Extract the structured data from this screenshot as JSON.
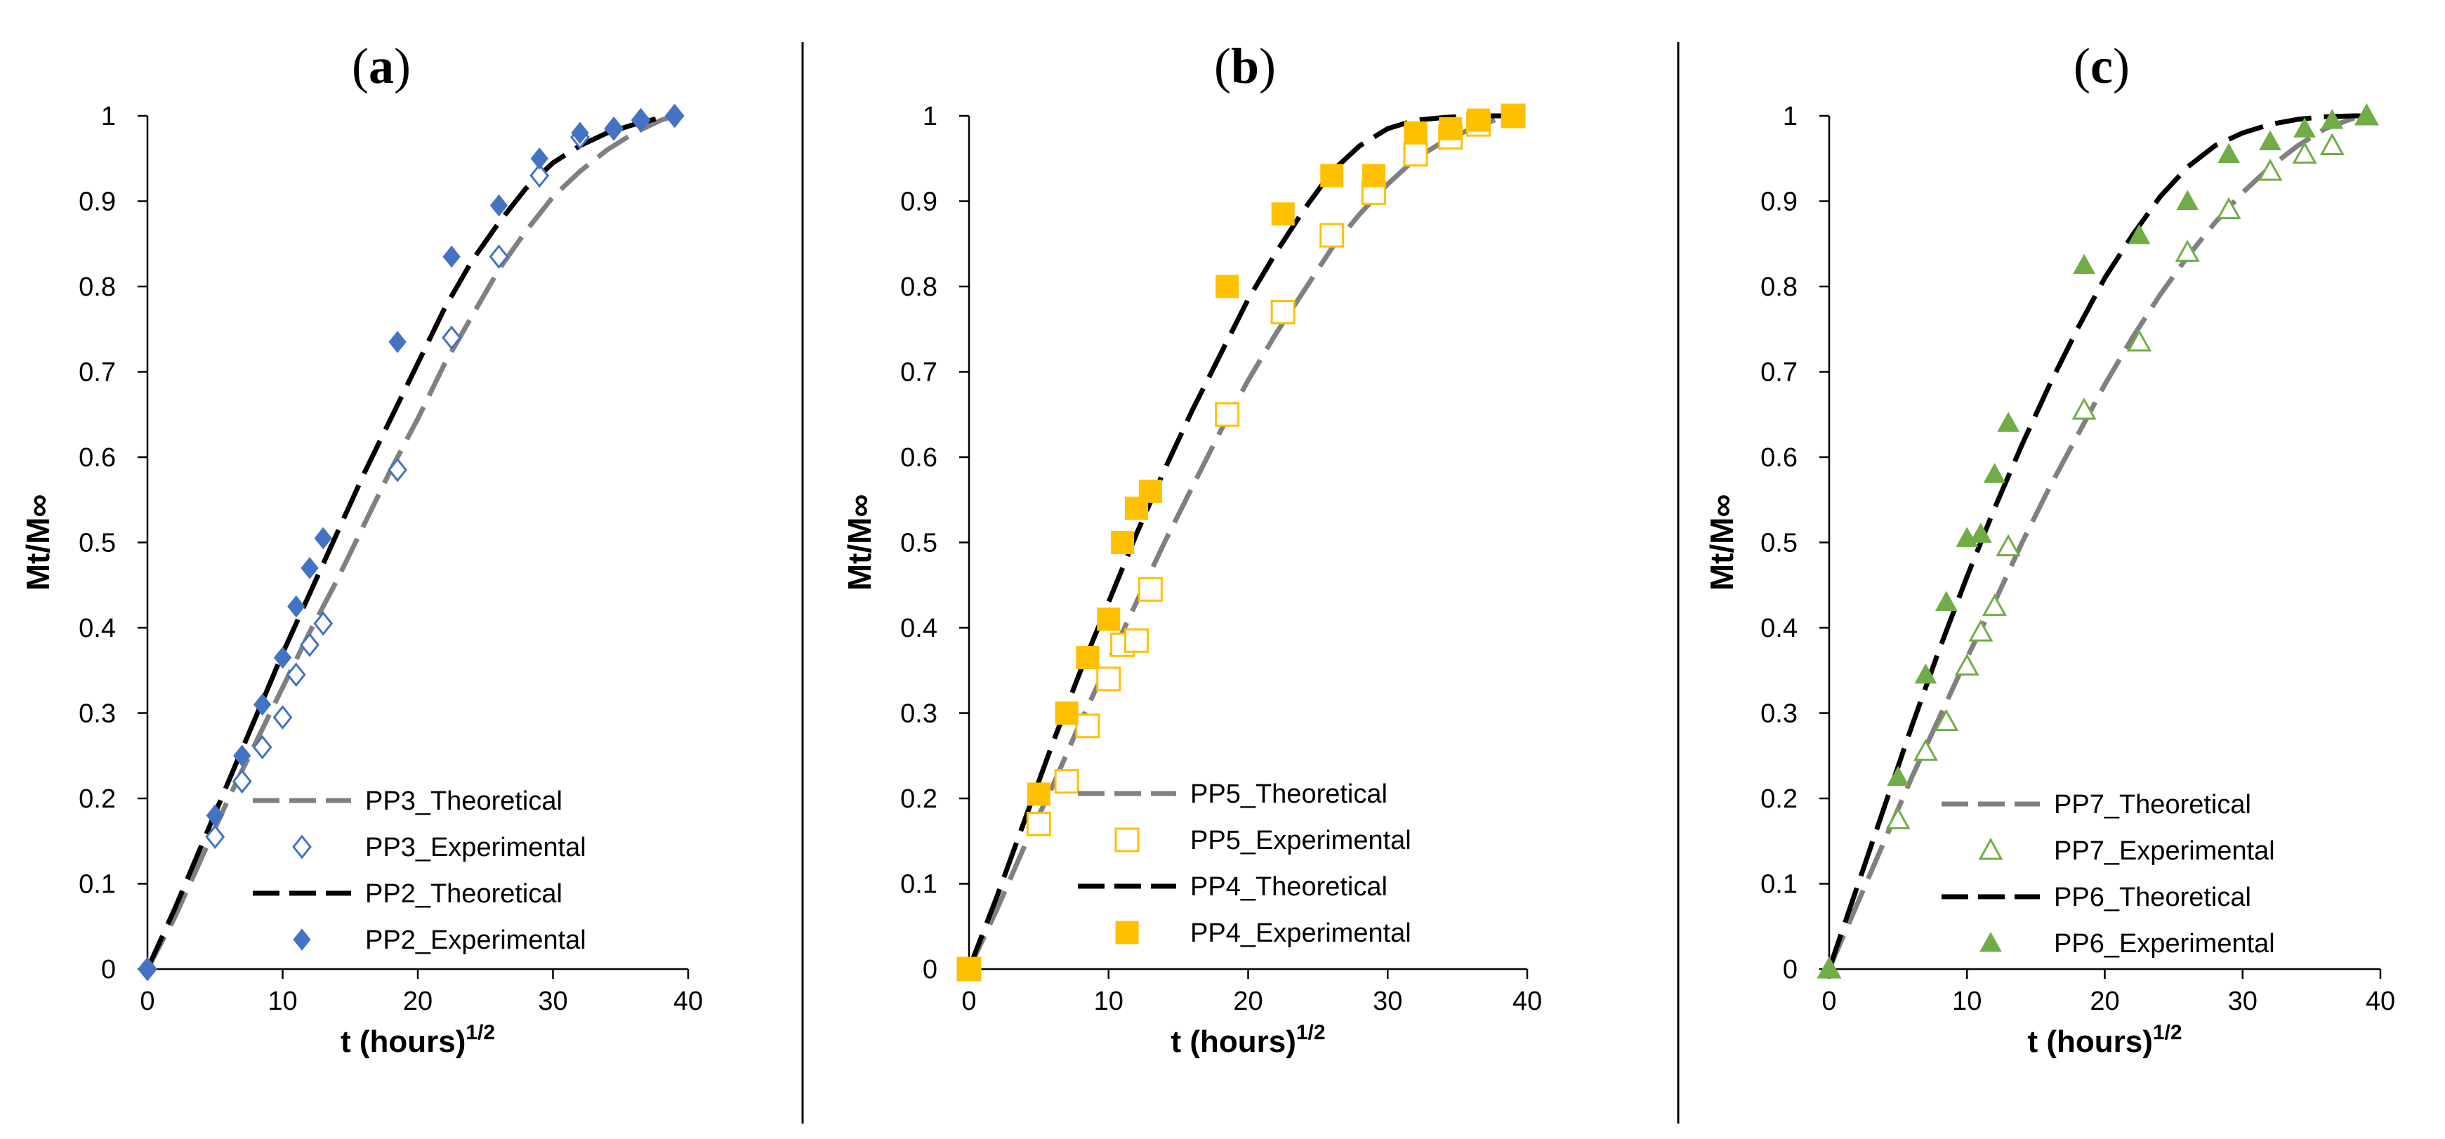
{
  "chart_data": [
    {
      "type": "scatter",
      "panel_label": "a",
      "title_open": "(",
      "title_close": ")",
      "xlabel": "t (hours)",
      "xlabel_exponent": "1/2",
      "ylabel": "Mt/M∞",
      "xlim": [
        0,
        40
      ],
      "ylim": [
        0,
        1
      ],
      "xticks": [
        "0",
        "10",
        "20",
        "30",
        "40"
      ],
      "yticks": [
        "0",
        "0.1",
        "0.2",
        "0.3",
        "0.4",
        "0.5",
        "0.6",
        "0.7",
        "0.8",
        "0.9",
        "1"
      ],
      "series": [
        {
          "name": "PP3_Theoretical",
          "kind": "line",
          "color": "#808080",
          "x": [
            0,
            2,
            4,
            6,
            8,
            10,
            12,
            14,
            16,
            18,
            20,
            22,
            24,
            26,
            28,
            30,
            32,
            34,
            36,
            38,
            39
          ],
          "y": [
            0,
            0.06,
            0.13,
            0.2,
            0.265,
            0.33,
            0.395,
            0.455,
            0.52,
            0.585,
            0.645,
            0.71,
            0.765,
            0.82,
            0.865,
            0.905,
            0.935,
            0.96,
            0.98,
            0.995,
            1.0
          ]
        },
        {
          "name": "PP3_Experimental",
          "kind": "marker",
          "marker": "diamond-open",
          "color": "#4472C4",
          "x": [
            0,
            5,
            7,
            8.5,
            10,
            11,
            12,
            13,
            18.5,
            22.5,
            26,
            29,
            32,
            34.5,
            36.5,
            39
          ],
          "y": [
            0,
            0.155,
            0.22,
            0.26,
            0.295,
            0.345,
            0.38,
            0.405,
            0.585,
            0.74,
            0.835,
            0.93,
            0.975,
            0.985,
            0.995,
            1.0
          ]
        },
        {
          "name": "PP2_Theoretical",
          "kind": "line",
          "color": "#000000",
          "x": [
            0,
            2,
            4,
            6,
            8,
            10,
            12,
            14,
            16,
            18,
            20,
            22,
            24,
            26,
            28,
            30,
            32,
            34,
            36,
            38,
            39
          ],
          "y": [
            0,
            0.07,
            0.145,
            0.22,
            0.295,
            0.37,
            0.44,
            0.51,
            0.58,
            0.645,
            0.71,
            0.775,
            0.83,
            0.875,
            0.915,
            0.945,
            0.965,
            0.98,
            0.99,
            0.998,
            1.0
          ]
        },
        {
          "name": "PP2_Experimental",
          "kind": "marker",
          "marker": "diamond",
          "color": "#4472C4",
          "x": [
            0,
            5,
            7,
            8.5,
            10,
            11,
            12,
            13,
            18.5,
            22.5,
            26,
            29,
            32,
            34.5,
            36.5,
            39
          ],
          "y": [
            0,
            0.18,
            0.25,
            0.31,
            0.365,
            0.425,
            0.47,
            0.505,
            0.735,
            0.835,
            0.895,
            0.95,
            0.98,
            0.985,
            0.995,
            1.0
          ]
        }
      ]
    },
    {
      "type": "scatter",
      "panel_label": "b",
      "title_open": "(",
      "title_close": ")",
      "xlabel": "t (hours)",
      "xlabel_exponent": "1/2",
      "ylabel": "Mt/M∞",
      "xlim": [
        0,
        40
      ],
      "ylim": [
        0,
        1
      ],
      "xticks": [
        "0",
        "10",
        "20",
        "30",
        "40"
      ],
      "yticks": [
        "0",
        "0.1",
        "0.2",
        "0.3",
        "0.4",
        "0.5",
        "0.6",
        "0.7",
        "0.8",
        "0.9",
        "1"
      ],
      "series": [
        {
          "name": "PP5_Theoretical",
          "kind": "line",
          "color": "#808080",
          "x": [
            0,
            2,
            4,
            6,
            8,
            10,
            12,
            14,
            16,
            18,
            20,
            22,
            24,
            26,
            28,
            30,
            32,
            34,
            36,
            38,
            39
          ],
          "y": [
            0,
            0.07,
            0.145,
            0.215,
            0.29,
            0.36,
            0.43,
            0.5,
            0.565,
            0.63,
            0.69,
            0.745,
            0.795,
            0.845,
            0.885,
            0.92,
            0.95,
            0.97,
            0.985,
            0.997,
            1.0
          ]
        },
        {
          "name": "PP5_Experimental",
          "kind": "marker",
          "marker": "square-open",
          "color": "#FFC000",
          "x": [
            0,
            5,
            7,
            8.5,
            10,
            11,
            12,
            13,
            18.5,
            22.5,
            26,
            29,
            32,
            34.5,
            36.5,
            39
          ],
          "y": [
            0,
            0.17,
            0.22,
            0.285,
            0.34,
            0.38,
            0.385,
            0.445,
            0.65,
            0.77,
            0.86,
            0.91,
            0.955,
            0.975,
            0.99,
            1.0
          ]
        },
        {
          "name": "PP4_Theoretical",
          "kind": "line",
          "color": "#000000",
          "x": [
            0,
            2,
            4,
            6,
            8,
            10,
            12,
            14,
            16,
            18,
            20,
            22,
            24,
            26,
            28,
            30,
            32,
            34,
            36,
            38,
            39
          ],
          "y": [
            0,
            0.085,
            0.175,
            0.265,
            0.35,
            0.43,
            0.51,
            0.585,
            0.655,
            0.72,
            0.785,
            0.84,
            0.89,
            0.935,
            0.965,
            0.985,
            0.995,
            0.998,
            1.0,
            1.0,
            1.0
          ]
        },
        {
          "name": "PP4_Experimental",
          "kind": "marker",
          "marker": "square",
          "color": "#FFC000",
          "x": [
            0,
            5,
            7,
            8.5,
            10,
            11,
            12,
            13,
            18.5,
            22.5,
            26,
            29,
            32,
            34.5,
            36.5,
            39
          ],
          "y": [
            0,
            0.205,
            0.3,
            0.365,
            0.41,
            0.5,
            0.54,
            0.56,
            0.8,
            0.885,
            0.93,
            0.93,
            0.98,
            0.985,
            0.995,
            1.0
          ]
        }
      ]
    },
    {
      "type": "scatter",
      "panel_label": "c",
      "title_open": "(",
      "title_close": ")",
      "xlabel": "t (hours)",
      "xlabel_exponent": "1/2",
      "ylabel": "Mt/M∞",
      "xlim": [
        0,
        40
      ],
      "ylim": [
        0,
        1
      ],
      "xticks": [
        "0",
        "10",
        "20",
        "30",
        "40"
      ],
      "yticks": [
        "0",
        "0.1",
        "0.2",
        "0.3",
        "0.4",
        "0.5",
        "0.6",
        "0.7",
        "0.8",
        "0.9",
        "1"
      ],
      "series": [
        {
          "name": "PP7_Theoretical",
          "kind": "line",
          "color": "#808080",
          "x": [
            0,
            2,
            4,
            6,
            8,
            10,
            12,
            14,
            16,
            18,
            20,
            22,
            24,
            26,
            28,
            30,
            32,
            34,
            36,
            38,
            39
          ],
          "y": [
            0,
            0.075,
            0.15,
            0.225,
            0.295,
            0.365,
            0.43,
            0.5,
            0.565,
            0.625,
            0.685,
            0.74,
            0.79,
            0.835,
            0.875,
            0.91,
            0.94,
            0.965,
            0.985,
            0.997,
            1.0
          ]
        },
        {
          "name": "PP7_Experimental",
          "kind": "marker",
          "marker": "triangle-open",
          "color": "#70AD47",
          "x": [
            0,
            5,
            7,
            8.5,
            10,
            11,
            12,
            13,
            18.5,
            22.5,
            26,
            29,
            32,
            34.5,
            36.5,
            39
          ],
          "y": [
            0,
            0.175,
            0.255,
            0.29,
            0.355,
            0.395,
            0.425,
            0.495,
            0.655,
            0.735,
            0.84,
            0.89,
            0.935,
            0.955,
            0.965,
            1.0
          ]
        },
        {
          "name": "PP6_Theoretical",
          "kind": "line",
          "color": "#000000",
          "x": [
            0,
            2,
            4,
            6,
            8,
            10,
            12,
            14,
            16,
            18,
            20,
            22,
            24,
            26,
            28,
            30,
            32,
            34,
            36,
            38,
            39
          ],
          "y": [
            0,
            0.095,
            0.19,
            0.285,
            0.375,
            0.46,
            0.54,
            0.615,
            0.685,
            0.75,
            0.81,
            0.86,
            0.905,
            0.94,
            0.965,
            0.98,
            0.99,
            0.996,
            0.999,
            1.0,
            1.0
          ]
        },
        {
          "name": "PP6_Experimental",
          "kind": "marker",
          "marker": "triangle",
          "color": "#70AD47",
          "x": [
            0,
            5,
            7,
            8.5,
            10,
            11,
            12,
            13,
            18.5,
            22.5,
            26,
            29,
            32,
            34.5,
            36.5,
            39
          ],
          "y": [
            0,
            0.225,
            0.345,
            0.43,
            0.505,
            0.51,
            0.58,
            0.64,
            0.825,
            0.86,
            0.9,
            0.955,
            0.97,
            0.985,
            0.995,
            1.0
          ]
        }
      ]
    }
  ]
}
